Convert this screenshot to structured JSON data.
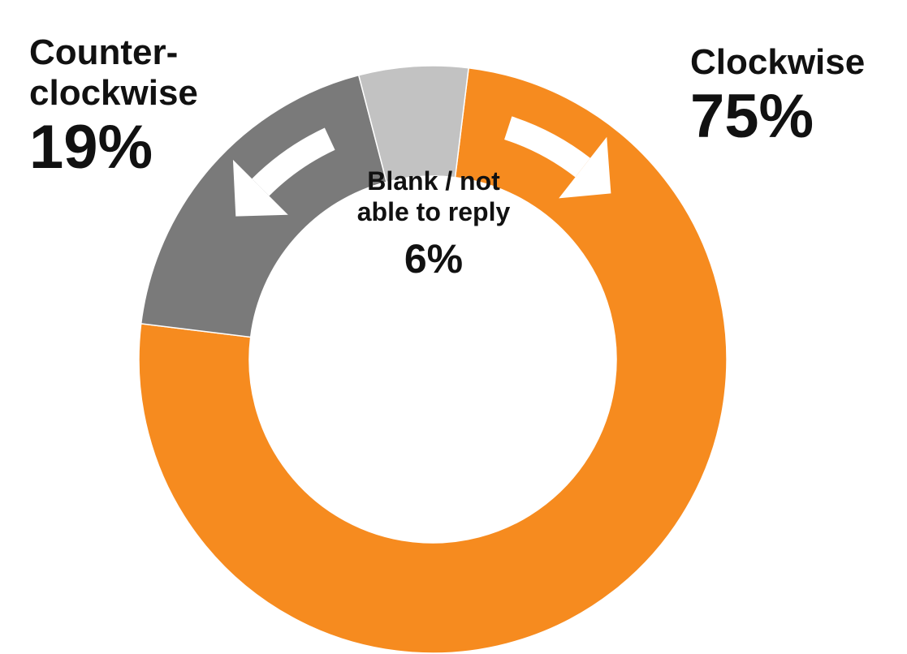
{
  "chart_data": {
    "type": "pie",
    "title": "",
    "donut": true,
    "categories": [
      "Clockwise",
      "Counter-\nclockwise",
      "Blank / not\nable to reply"
    ],
    "values": [
      75,
      19,
      6
    ],
    "value_labels": [
      "75%",
      "19%",
      "6%"
    ],
    "colors": [
      "#f68b1f",
      "#7a7a7a",
      "#c2c2c2"
    ],
    "legend": "none",
    "annotations": [
      "clockwise-arrow",
      "counterclockwise-arrow"
    ]
  }
}
